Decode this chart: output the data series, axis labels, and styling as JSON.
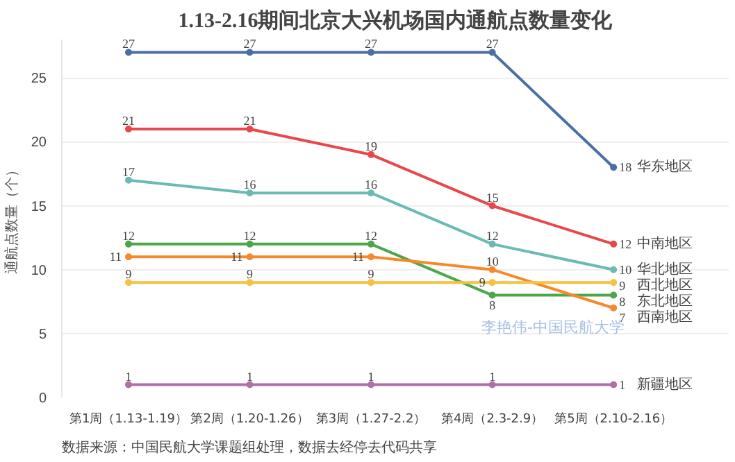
{
  "chart_data": {
    "type": "line",
    "title": "1.13-2.16期间北京大兴机场国内通航点数量变化",
    "ylabel": "通航点数量（个）",
    "categories": [
      "第1周（1.13-1.19）",
      "第2周（1.20-1.26）",
      "第3周（1.27-2.2）",
      "第4周（2.3-2.9）",
      "第5周（2.10-2.16）"
    ],
    "ylim": [
      0,
      28
    ],
    "yticks": [
      0,
      5,
      10,
      15,
      20,
      25
    ],
    "grid": "y",
    "data_labels": true,
    "marker": "circle",
    "line_style": "solid",
    "series": [
      {
        "name": "华东地区",
        "color": "#4a6fa5",
        "values": [
          27,
          27,
          27,
          27,
          18
        ]
      },
      {
        "name": "中南地区",
        "color": "#e8474c",
        "values": [
          21,
          21,
          19,
          15,
          12
        ]
      },
      {
        "name": "华北地区",
        "color": "#6bbab3",
        "values": [
          17,
          16,
          16,
          12,
          10
        ]
      },
      {
        "name": "东北地区",
        "color": "#4ea64a",
        "values": [
          12,
          12,
          12,
          8,
          8
        ]
      },
      {
        "name": "西南地区",
        "color": "#f58a2d",
        "values": [
          11,
          11,
          11,
          10,
          7
        ]
      },
      {
        "name": "西北地区",
        "color": "#f5c242",
        "values": [
          9,
          9,
          9,
          9,
          9
        ]
      },
      {
        "name": "新疆地区",
        "color": "#b06fa8",
        "values": [
          1,
          1,
          1,
          1,
          1
        ]
      }
    ],
    "annotations": [
      "李艳伟-中国民航大学",
      "数据来源：中国民航大学课题组处理，数据去经停去代码共享"
    ]
  }
}
